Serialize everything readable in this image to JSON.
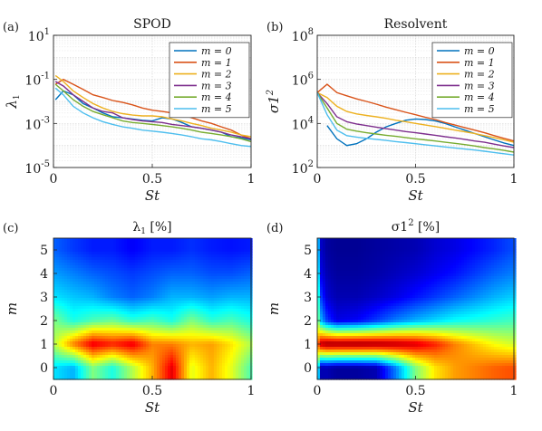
{
  "chart_data": [
    {
      "panel": "(a)",
      "type": "line",
      "title": "SPOD",
      "xlabel": "St",
      "ylabel": "λ1",
      "yscale": "log",
      "xlim": [
        0,
        1
      ],
      "ylim": [
        1e-05,
        10
      ],
      "xticks": [
        "0",
        "0.5",
        "1"
      ],
      "yticks": [
        "10^-5",
        "10^-3",
        "10^-1",
        "10^1"
      ],
      "grid": true,
      "legend_position": "top-right",
      "x": [
        0.01,
        0.05,
        0.1,
        0.15,
        0.2,
        0.25,
        0.3,
        0.35,
        0.4,
        0.45,
        0.5,
        0.55,
        0.6,
        0.65,
        0.7,
        0.75,
        0.8,
        0.85,
        0.9,
        0.95,
        1.0
      ],
      "series": [
        {
          "name": "m = 0",
          "color": "#0072BD",
          "values": [
            0.012,
            0.03,
            0.02,
            0.008,
            0.005,
            0.003,
            0.002,
            0.0018,
            0.0016,
            0.0014,
            0.0013,
            0.0018,
            0.0016,
            0.0011,
            0.0007,
            0.0006,
            0.0005,
            0.0004,
            0.00025,
            0.00022,
            0.00018
          ]
        },
        {
          "name": "m = 1",
          "color": "#D95319",
          "values": [
            0.06,
            0.1,
            0.06,
            0.035,
            0.02,
            0.015,
            0.011,
            0.009,
            0.007,
            0.005,
            0.004,
            0.0035,
            0.003,
            0.0025,
            0.0018,
            0.0013,
            0.001,
            0.0007,
            0.0005,
            0.0003,
            0.0002
          ]
        },
        {
          "name": "m = 2",
          "color": "#EDB120",
          "values": [
            0.15,
            0.08,
            0.03,
            0.015,
            0.008,
            0.005,
            0.0035,
            0.0028,
            0.0024,
            0.0022,
            0.0022,
            0.002,
            0.0016,
            0.0013,
            0.001,
            0.0008,
            0.0006,
            0.0005,
            0.0004,
            0.0003,
            0.00025
          ]
        },
        {
          "name": "m = 3",
          "color": "#7E2F8E",
          "values": [
            0.08,
            0.05,
            0.02,
            0.01,
            0.005,
            0.0035,
            0.003,
            0.0018,
            0.0015,
            0.0013,
            0.0012,
            0.0011,
            0.0009,
            0.0008,
            0.0007,
            0.0006,
            0.0005,
            0.0004,
            0.0003,
            0.00025,
            0.0002
          ]
        },
        {
          "name": "m = 4",
          "color": "#77AC30",
          "values": [
            0.06,
            0.03,
            0.012,
            0.006,
            0.0035,
            0.0025,
            0.0018,
            0.0013,
            0.0011,
            0.001,
            0.0009,
            0.0008,
            0.0007,
            0.0006,
            0.0005,
            0.0004,
            0.00035,
            0.0003,
            0.00025,
            0.0002,
            0.00015
          ]
        },
        {
          "name": "m = 5",
          "color": "#4DBEEE",
          "values": [
            0.04,
            0.02,
            0.006,
            0.003,
            0.0018,
            0.0012,
            0.0009,
            0.0007,
            0.0006,
            0.0005,
            0.00045,
            0.0004,
            0.00035,
            0.0003,
            0.00025,
            0.0002,
            0.00018,
            0.00015,
            0.00012,
            0.0001,
            9e-05
          ]
        }
      ]
    },
    {
      "panel": "(b)",
      "type": "line",
      "title": "Resolvent",
      "xlabel": "St",
      "ylabel": "σ1^2",
      "yscale": "log",
      "xlim": [
        0,
        1
      ],
      "ylim": [
        100,
        100000000.0
      ],
      "xticks": [
        "0",
        "0.5",
        "1"
      ],
      "yticks": [
        "10^2",
        "10^4",
        "10^6",
        "10^8"
      ],
      "grid": true,
      "legend_position": "top-right",
      "x": [
        0.0,
        0.05,
        0.1,
        0.15,
        0.2,
        0.25,
        0.3,
        0.35,
        0.4,
        0.45,
        0.5,
        0.55,
        0.6,
        0.65,
        0.7,
        0.75,
        0.8,
        0.85,
        0.9,
        0.95,
        1.0
      ],
      "series": [
        {
          "name": "m = 0",
          "color": "#0072BD",
          "values": [
            null,
            8000,
            2000,
            1000,
            1200,
            2000,
            4000,
            7000,
            10000,
            14000,
            16000,
            15000,
            13000,
            10000,
            7000,
            5000,
            3500,
            2500,
            1800,
            1300,
            1000
          ]
        },
        {
          "name": "m = 1",
          "color": "#D95319",
          "values": [
            250000,
            600000,
            250000,
            180000,
            130000,
            100000,
            75000,
            55000,
            42000,
            32000,
            25000,
            19000,
            15000,
            11000,
            8500,
            6500,
            5000,
            3800,
            2800,
            2100,
            1600
          ]
        },
        {
          "name": "m = 2",
          "color": "#EDB120",
          "values": [
            250000,
            150000,
            60000,
            35000,
            27000,
            23000,
            20000,
            17000,
            14000,
            12000,
            10000,
            8500,
            7200,
            6000,
            5000,
            4200,
            3500,
            2800,
            2300,
            1800,
            1400
          ]
        },
        {
          "name": "m = 3",
          "color": "#7E2F8E",
          "values": [
            250000,
            80000,
            20000,
            12000,
            9500,
            8000,
            6800,
            5800,
            5000,
            4300,
            3800,
            3300,
            2900,
            2500,
            2200,
            1900,
            1600,
            1400,
            1150,
            950,
            800
          ]
        },
        {
          "name": "m = 4",
          "color": "#77AC30",
          "values": [
            250000,
            50000,
            10000,
            5500,
            4500,
            3800,
            3300,
            2900,
            2600,
            2300,
            2000,
            1800,
            1600,
            1400,
            1250,
            1100,
            950,
            800,
            700,
            600,
            500
          ]
        },
        {
          "name": "m = 5",
          "color": "#4DBEEE",
          "values": [
            250000,
            25000,
            5000,
            2800,
            2400,
            2100,
            1900,
            1700,
            1500,
            1350,
            1200,
            1080,
            960,
            860,
            770,
            690,
            620,
            550,
            480,
            420,
            370
          ]
        }
      ]
    },
    {
      "panel": "(c)",
      "type": "heatmap",
      "title": "λ1 [%]",
      "xlabel": "St",
      "ylabel": "m",
      "xlim": [
        0,
        1
      ],
      "ylim": [
        -0.5,
        5.5
      ],
      "xticks": [
        "0",
        "0.5",
        "1"
      ],
      "yticks": [
        "0",
        "1",
        "2",
        "3",
        "4",
        "5"
      ],
      "colormap": "jet",
      "x": [
        0.0,
        0.1,
        0.2,
        0.3,
        0.4,
        0.5,
        0.6,
        0.7,
        0.8,
        0.9,
        1.0
      ],
      "y": [
        0,
        1,
        2,
        3,
        4,
        5
      ],
      "z": [
        [
          0.35,
          0.3,
          0.5,
          0.4,
          0.55,
          0.7,
          0.9,
          0.6,
          0.7,
          0.6,
          0.45
        ],
        [
          0.55,
          0.75,
          0.9,
          0.85,
          0.9,
          0.75,
          0.75,
          0.7,
          0.72,
          0.65,
          0.55
        ],
        [
          0.5,
          0.4,
          0.45,
          0.48,
          0.42,
          0.45,
          0.4,
          0.5,
          0.42,
          0.45,
          0.4
        ],
        [
          0.35,
          0.32,
          0.3,
          0.25,
          0.22,
          0.25,
          0.3,
          0.3,
          0.28,
          0.3,
          0.3
        ],
        [
          0.28,
          0.25,
          0.22,
          0.2,
          0.18,
          0.2,
          0.22,
          0.22,
          0.2,
          0.2,
          0.22
        ],
        [
          0.22,
          0.18,
          0.15,
          0.15,
          0.12,
          0.15,
          0.15,
          0.17,
          0.15,
          0.14,
          0.15
        ]
      ]
    },
    {
      "panel": "(d)",
      "type": "heatmap",
      "title": "σ1^2 [%]",
      "xlabel": "St",
      "ylabel": "m",
      "xlim": [
        0,
        1
      ],
      "ylim": [
        -0.5,
        5.5
      ],
      "xticks": [
        "0",
        "0.5",
        "1"
      ],
      "yticks": [
        "0",
        "1",
        "2",
        "3",
        "4",
        "5"
      ],
      "colormap": "jet",
      "x": [
        0.0,
        0.02,
        0.05,
        0.1,
        0.2,
        0.3,
        0.4,
        0.5,
        0.6,
        0.7,
        0.8,
        0.9,
        1.0
      ],
      "y": [
        0,
        1,
        2,
        3,
        4,
        5
      ],
      "z": [
        [
          0.45,
          0.05,
          0.05,
          0.03,
          0.03,
          0.05,
          0.25,
          0.5,
          0.65,
          0.72,
          0.75,
          0.78,
          0.8
        ],
        [
          0.75,
          0.95,
          0.98,
          0.98,
          0.98,
          0.97,
          0.95,
          0.92,
          0.85,
          0.75,
          0.68,
          0.62,
          0.58
        ],
        [
          0.55,
          0.3,
          0.18,
          0.1,
          0.12,
          0.18,
          0.25,
          0.3,
          0.34,
          0.38,
          0.4,
          0.42,
          0.44
        ],
        [
          0.5,
          0.18,
          0.08,
          0.05,
          0.05,
          0.07,
          0.1,
          0.14,
          0.18,
          0.22,
          0.26,
          0.3,
          0.33
        ],
        [
          0.45,
          0.1,
          0.05,
          0.03,
          0.03,
          0.04,
          0.06,
          0.08,
          0.11,
          0.14,
          0.18,
          0.22,
          0.25
        ],
        [
          0.4,
          0.07,
          0.03,
          0.02,
          0.02,
          0.03,
          0.04,
          0.05,
          0.08,
          0.1,
          0.13,
          0.16,
          0.2
        ]
      ]
    }
  ],
  "figure": {
    "panel_labels": [
      "(a)",
      "(b)",
      "(c)",
      "(d)"
    ]
  }
}
